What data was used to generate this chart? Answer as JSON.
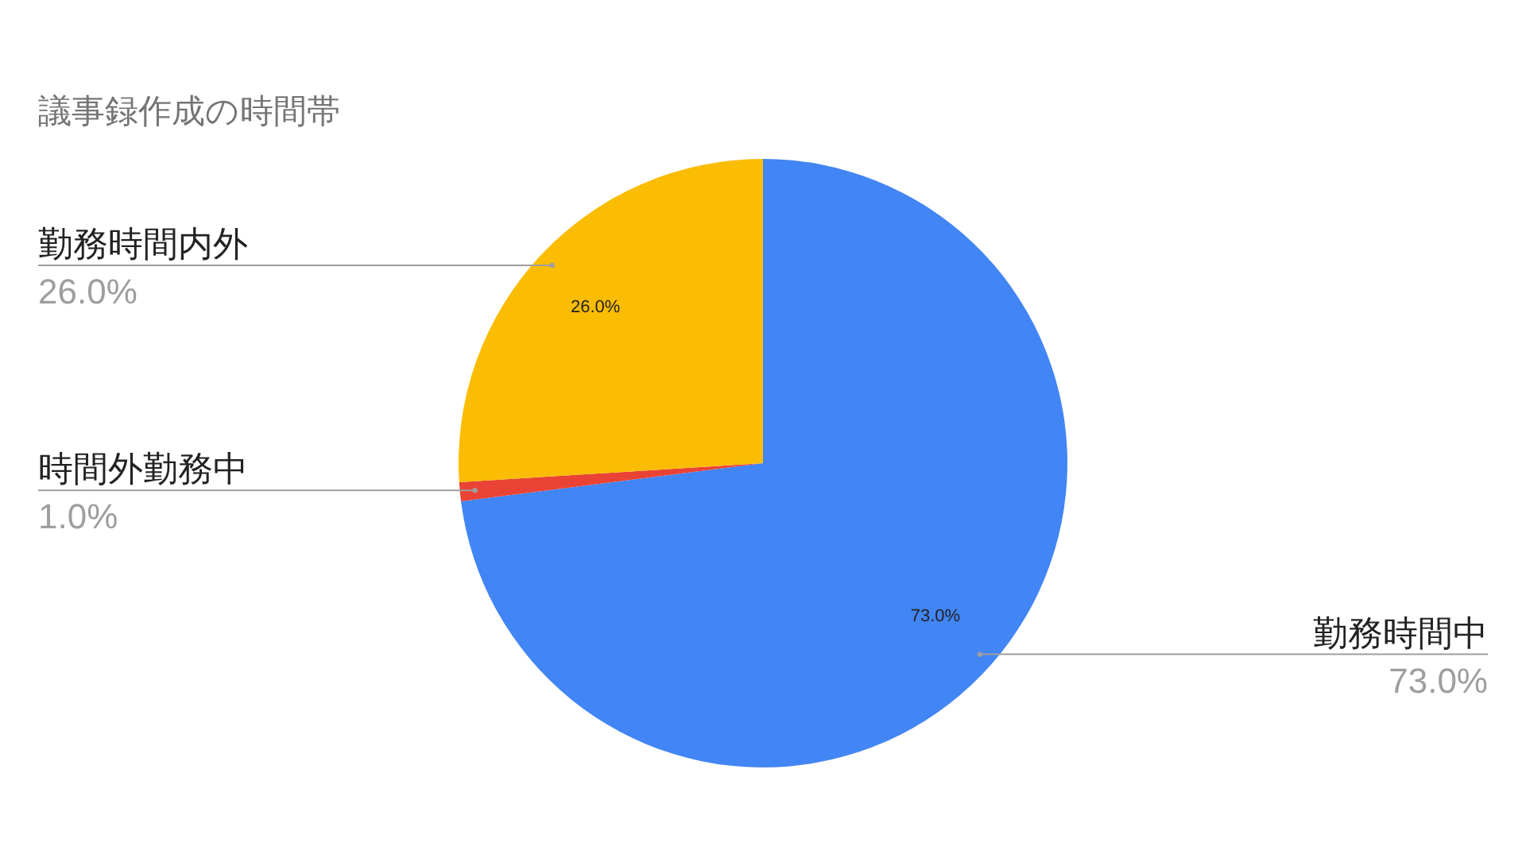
{
  "chart_data": {
    "type": "pie",
    "title": "議事録作成の時間帯",
    "categories": [
      "勤務時間中",
      "時間外勤務中",
      "勤務時間内外"
    ],
    "values": [
      73,
      1,
      26
    ],
    "colors": [
      "#4285f4",
      "#ea4335",
      "#fbbc04"
    ],
    "value_labels": [
      "73.0%",
      "1.0%",
      "26.0%"
    ]
  }
}
